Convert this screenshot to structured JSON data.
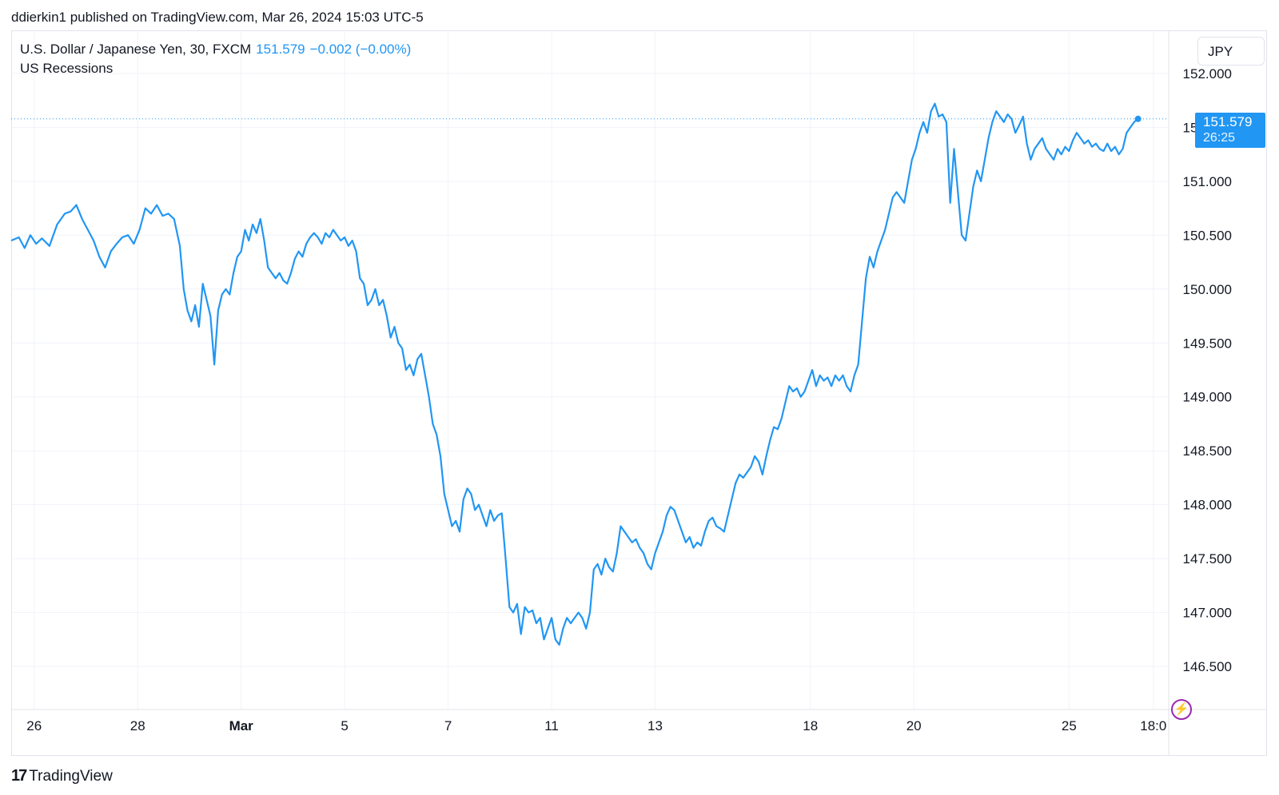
{
  "header": {
    "publisher_text": "ddierkin1 published on TradingView.com, Mar 26, 2024 15:03 UTC-5"
  },
  "legend": {
    "symbol": "U.S. Dollar / Japanese Yen, 30, FXCM",
    "last_price": "151.579",
    "change": "−0.002 (−0.00%)",
    "indicator": "US Recessions"
  },
  "currency_button": {
    "label": "JPY"
  },
  "price_tag": {
    "price": "151.579",
    "countdown": "26:25"
  },
  "footer": {
    "logo_text": "TradingView"
  },
  "colors": {
    "line": "#2196f3",
    "grid": "#f0f3fa",
    "axis_border": "#e0e3eb",
    "text": "#131722",
    "accent_purple": "#9c27b0"
  },
  "icons": {
    "flash": "lightning-icon",
    "logo": "tradingview-logo-icon"
  },
  "chart_data": {
    "type": "line",
    "ylim": [
      146.1,
      152.4
    ],
    "y_ticks": [
      146.5,
      147.0,
      147.5,
      148.0,
      148.5,
      149.0,
      149.5,
      150.0,
      150.5,
      151.0,
      151.5,
      152.0
    ],
    "y_tick_labels": [
      "146.500",
      "147.000",
      "147.500",
      "148.000",
      "148.500",
      "149.000",
      "149.500",
      "150.000",
      "150.500",
      "151.000",
      "151.500",
      "152.000"
    ],
    "x_ticks": [
      {
        "label": "26",
        "x": 0.6,
        "bold": false
      },
      {
        "label": "28",
        "x": 3.3,
        "bold": false
      },
      {
        "label": "Mar",
        "x": 6.0,
        "bold": true
      },
      {
        "label": "5",
        "x": 8.7,
        "bold": false
      },
      {
        "label": "7",
        "x": 11.4,
        "bold": false
      },
      {
        "label": "11",
        "x": 14.1,
        "bold": false
      },
      {
        "label": "13",
        "x": 16.8,
        "bold": false
      },
      {
        "label": "18",
        "x": 20.85,
        "bold": false
      },
      {
        "label": "20",
        "x": 23.55,
        "bold": false
      },
      {
        "label": "25",
        "x": 27.6,
        "bold": false
      },
      {
        "label": "18:0",
        "x": 29.8,
        "bold": false
      }
    ],
    "xlim": [
      0,
      30.2
    ],
    "last_value": 151.579,
    "series": [
      {
        "values": [
          [
            0.0,
            150.45
          ],
          [
            0.2,
            150.48
          ],
          [
            0.35,
            150.38
          ],
          [
            0.5,
            150.5
          ],
          [
            0.65,
            150.42
          ],
          [
            0.8,
            150.47
          ],
          [
            1.0,
            150.4
          ],
          [
            1.2,
            150.6
          ],
          [
            1.4,
            150.7
          ],
          [
            1.55,
            150.72
          ],
          [
            1.7,
            150.78
          ],
          [
            1.85,
            150.65
          ],
          [
            2.0,
            150.55
          ],
          [
            2.15,
            150.45
          ],
          [
            2.3,
            150.3
          ],
          [
            2.45,
            150.2
          ],
          [
            2.6,
            150.35
          ],
          [
            2.75,
            150.42
          ],
          [
            2.9,
            150.48
          ],
          [
            3.05,
            150.5
          ],
          [
            3.2,
            150.42
          ],
          [
            3.35,
            150.55
          ],
          [
            3.5,
            150.75
          ],
          [
            3.65,
            150.7
          ],
          [
            3.8,
            150.78
          ],
          [
            3.95,
            150.68
          ],
          [
            4.1,
            150.7
          ],
          [
            4.25,
            150.65
          ],
          [
            4.4,
            150.4
          ],
          [
            4.5,
            150.0
          ],
          [
            4.6,
            149.8
          ],
          [
            4.7,
            149.7
          ],
          [
            4.8,
            149.85
          ],
          [
            4.9,
            149.65
          ],
          [
            5.0,
            150.05
          ],
          [
            5.1,
            149.9
          ],
          [
            5.2,
            149.75
          ],
          [
            5.3,
            149.3
          ],
          [
            5.4,
            149.8
          ],
          [
            5.5,
            149.95
          ],
          [
            5.6,
            150.0
          ],
          [
            5.7,
            149.95
          ],
          [
            5.8,
            150.15
          ],
          [
            5.9,
            150.3
          ],
          [
            6.0,
            150.35
          ],
          [
            6.1,
            150.55
          ],
          [
            6.2,
            150.45
          ],
          [
            6.3,
            150.6
          ],
          [
            6.4,
            150.52
          ],
          [
            6.5,
            150.65
          ],
          [
            6.6,
            150.45
          ],
          [
            6.7,
            150.2
          ],
          [
            6.8,
            150.15
          ],
          [
            6.9,
            150.1
          ],
          [
            7.0,
            150.15
          ],
          [
            7.1,
            150.08
          ],
          [
            7.2,
            150.05
          ],
          [
            7.3,
            150.15
          ],
          [
            7.4,
            150.28
          ],
          [
            7.5,
            150.35
          ],
          [
            7.6,
            150.3
          ],
          [
            7.7,
            150.42
          ],
          [
            7.8,
            150.48
          ],
          [
            7.9,
            150.52
          ],
          [
            8.0,
            150.48
          ],
          [
            8.1,
            150.42
          ],
          [
            8.2,
            150.52
          ],
          [
            8.3,
            150.48
          ],
          [
            8.4,
            150.55
          ],
          [
            8.5,
            150.5
          ],
          [
            8.6,
            150.45
          ],
          [
            8.7,
            150.48
          ],
          [
            8.8,
            150.4
          ],
          [
            8.9,
            150.45
          ],
          [
            9.0,
            150.35
          ],
          [
            9.1,
            150.1
          ],
          [
            9.2,
            150.05
          ],
          [
            9.3,
            149.85
          ],
          [
            9.4,
            149.9
          ],
          [
            9.5,
            150.0
          ],
          [
            9.6,
            149.85
          ],
          [
            9.7,
            149.9
          ],
          [
            9.8,
            149.75
          ],
          [
            9.9,
            149.55
          ],
          [
            10.0,
            149.65
          ],
          [
            10.1,
            149.5
          ],
          [
            10.2,
            149.45
          ],
          [
            10.3,
            149.25
          ],
          [
            10.4,
            149.3
          ],
          [
            10.5,
            149.2
          ],
          [
            10.6,
            149.35
          ],
          [
            10.7,
            149.4
          ],
          [
            10.8,
            149.2
          ],
          [
            10.9,
            149.0
          ],
          [
            11.0,
            148.75
          ],
          [
            11.1,
            148.65
          ],
          [
            11.2,
            148.45
          ],
          [
            11.3,
            148.1
          ],
          [
            11.4,
            147.95
          ],
          [
            11.5,
            147.8
          ],
          [
            11.6,
            147.85
          ],
          [
            11.7,
            147.75
          ],
          [
            11.8,
            148.05
          ],
          [
            11.9,
            148.15
          ],
          [
            12.0,
            148.1
          ],
          [
            12.1,
            147.95
          ],
          [
            12.2,
            148.0
          ],
          [
            12.3,
            147.9
          ],
          [
            12.4,
            147.8
          ],
          [
            12.5,
            147.95
          ],
          [
            12.6,
            147.85
          ],
          [
            12.7,
            147.9
          ],
          [
            12.8,
            147.92
          ],
          [
            12.9,
            147.5
          ],
          [
            13.0,
            147.05
          ],
          [
            13.1,
            147.0
          ],
          [
            13.2,
            147.08
          ],
          [
            13.3,
            146.8
          ],
          [
            13.4,
            147.05
          ],
          [
            13.5,
            147.0
          ],
          [
            13.6,
            147.02
          ],
          [
            13.7,
            146.9
          ],
          [
            13.8,
            146.95
          ],
          [
            13.9,
            146.75
          ],
          [
            14.0,
            146.85
          ],
          [
            14.1,
            146.95
          ],
          [
            14.2,
            146.75
          ],
          [
            14.3,
            146.7
          ],
          [
            14.4,
            146.85
          ],
          [
            14.5,
            146.95
          ],
          [
            14.6,
            146.9
          ],
          [
            14.7,
            146.95
          ],
          [
            14.8,
            147.0
          ],
          [
            14.9,
            146.95
          ],
          [
            15.0,
            146.85
          ],
          [
            15.1,
            147.0
          ],
          [
            15.2,
            147.4
          ],
          [
            15.3,
            147.45
          ],
          [
            15.4,
            147.35
          ],
          [
            15.5,
            147.5
          ],
          [
            15.6,
            147.42
          ],
          [
            15.7,
            147.38
          ],
          [
            15.8,
            147.55
          ],
          [
            15.9,
            147.8
          ],
          [
            16.0,
            147.75
          ],
          [
            16.1,
            147.7
          ],
          [
            16.2,
            147.65
          ],
          [
            16.3,
            147.68
          ],
          [
            16.4,
            147.6
          ],
          [
            16.5,
            147.55
          ],
          [
            16.6,
            147.45
          ],
          [
            16.7,
            147.4
          ],
          [
            16.8,
            147.55
          ],
          [
            16.9,
            147.65
          ],
          [
            17.0,
            147.75
          ],
          [
            17.1,
            147.9
          ],
          [
            17.2,
            147.98
          ],
          [
            17.3,
            147.95
          ],
          [
            17.4,
            147.85
          ],
          [
            17.5,
            147.75
          ],
          [
            17.6,
            147.65
          ],
          [
            17.7,
            147.7
          ],
          [
            17.8,
            147.6
          ],
          [
            17.9,
            147.65
          ],
          [
            18.0,
            147.62
          ],
          [
            18.1,
            147.75
          ],
          [
            18.2,
            147.85
          ],
          [
            18.3,
            147.88
          ],
          [
            18.4,
            147.8
          ],
          [
            18.5,
            147.78
          ],
          [
            18.6,
            147.75
          ],
          [
            18.7,
            147.9
          ],
          [
            18.8,
            148.05
          ],
          [
            18.9,
            148.2
          ],
          [
            19.0,
            148.28
          ],
          [
            19.1,
            148.25
          ],
          [
            19.2,
            148.3
          ],
          [
            19.3,
            148.35
          ],
          [
            19.4,
            148.45
          ],
          [
            19.5,
            148.4
          ],
          [
            19.6,
            148.28
          ],
          [
            19.7,
            148.45
          ],
          [
            19.8,
            148.6
          ],
          [
            19.9,
            148.72
          ],
          [
            20.0,
            148.7
          ],
          [
            20.1,
            148.8
          ],
          [
            20.2,
            148.95
          ],
          [
            20.3,
            149.1
          ],
          [
            20.4,
            149.05
          ],
          [
            20.5,
            149.08
          ],
          [
            20.6,
            149.0
          ],
          [
            20.7,
            149.05
          ],
          [
            20.8,
            149.15
          ],
          [
            20.9,
            149.25
          ],
          [
            21.0,
            149.1
          ],
          [
            21.1,
            149.2
          ],
          [
            21.2,
            149.15
          ],
          [
            21.3,
            149.18
          ],
          [
            21.4,
            149.1
          ],
          [
            21.5,
            149.2
          ],
          [
            21.6,
            149.15
          ],
          [
            21.7,
            149.2
          ],
          [
            21.8,
            149.1
          ],
          [
            21.9,
            149.05
          ],
          [
            22.0,
            149.2
          ],
          [
            22.1,
            149.3
          ],
          [
            22.2,
            149.7
          ],
          [
            22.3,
            150.1
          ],
          [
            22.4,
            150.3
          ],
          [
            22.5,
            150.2
          ],
          [
            22.6,
            150.35
          ],
          [
            22.7,
            150.45
          ],
          [
            22.8,
            150.55
          ],
          [
            22.9,
            150.7
          ],
          [
            23.0,
            150.85
          ],
          [
            23.1,
            150.9
          ],
          [
            23.2,
            150.85
          ],
          [
            23.3,
            150.8
          ],
          [
            23.4,
            151.0
          ],
          [
            23.5,
            151.2
          ],
          [
            23.6,
            151.3
          ],
          [
            23.7,
            151.45
          ],
          [
            23.8,
            151.55
          ],
          [
            23.9,
            151.45
          ],
          [
            24.0,
            151.65
          ],
          [
            24.1,
            151.72
          ],
          [
            24.2,
            151.6
          ],
          [
            24.3,
            151.62
          ],
          [
            24.4,
            151.55
          ],
          [
            24.5,
            150.8
          ],
          [
            24.6,
            151.3
          ],
          [
            24.7,
            150.9
          ],
          [
            24.8,
            150.5
          ],
          [
            24.9,
            150.45
          ],
          [
            25.0,
            150.7
          ],
          [
            25.1,
            150.95
          ],
          [
            25.2,
            151.1
          ],
          [
            25.3,
            151.0
          ],
          [
            25.4,
            151.2
          ],
          [
            25.5,
            151.4
          ],
          [
            25.6,
            151.55
          ],
          [
            25.7,
            151.65
          ],
          [
            25.8,
            151.6
          ],
          [
            25.9,
            151.55
          ],
          [
            26.0,
            151.62
          ],
          [
            26.1,
            151.58
          ],
          [
            26.2,
            151.45
          ],
          [
            26.3,
            151.52
          ],
          [
            26.4,
            151.6
          ],
          [
            26.5,
            151.35
          ],
          [
            26.6,
            151.2
          ],
          [
            26.7,
            151.3
          ],
          [
            26.8,
            151.35
          ],
          [
            26.9,
            151.4
          ],
          [
            27.0,
            151.3
          ],
          [
            27.1,
            151.25
          ],
          [
            27.2,
            151.2
          ],
          [
            27.3,
            151.3
          ],
          [
            27.4,
            151.25
          ],
          [
            27.5,
            151.32
          ],
          [
            27.6,
            151.28
          ],
          [
            27.7,
            151.38
          ],
          [
            27.8,
            151.45
          ],
          [
            27.9,
            151.4
          ],
          [
            28.0,
            151.35
          ],
          [
            28.1,
            151.38
          ],
          [
            28.2,
            151.32
          ],
          [
            28.3,
            151.35
          ],
          [
            28.4,
            151.3
          ],
          [
            28.5,
            151.28
          ],
          [
            28.6,
            151.35
          ],
          [
            28.7,
            151.28
          ],
          [
            28.8,
            151.32
          ],
          [
            28.9,
            151.25
          ],
          [
            29.0,
            151.3
          ],
          [
            29.1,
            151.45
          ],
          [
            29.2,
            151.5
          ],
          [
            29.3,
            151.55
          ],
          [
            29.4,
            151.579
          ]
        ]
      }
    ]
  }
}
